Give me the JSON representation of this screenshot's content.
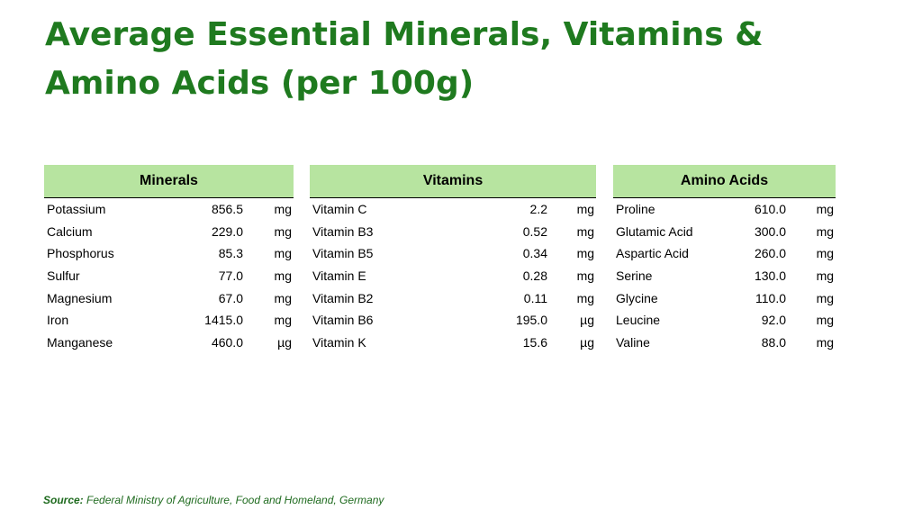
{
  "title": "Average Essential Minerals, Vitamins & Amino Acids (per 100g)",
  "source": {
    "label": "Source:",
    "text": "Federal Ministry of Agriculture, Food and Homeland, Germany"
  },
  "colors": {
    "title": "#1f7a1f",
    "header_bg": "#b7e4a0"
  },
  "tables": [
    {
      "header": "Minerals",
      "rows": [
        {
          "name": "Potassium",
          "value": "856.5",
          "unit": "mg"
        },
        {
          "name": "Calcium",
          "value": "229.0",
          "unit": "mg"
        },
        {
          "name": "Phosphorus",
          "value": "85.3",
          "unit": "mg"
        },
        {
          "name": "Sulfur",
          "value": "77.0",
          "unit": "mg"
        },
        {
          "name": "Magnesium",
          "value": "67.0",
          "unit": "mg"
        },
        {
          "name": "Iron",
          "value": "1415.0",
          "unit": "mg"
        },
        {
          "name": "Manganese",
          "value": "460.0",
          "unit": "µg"
        }
      ]
    },
    {
      "header": "Vitamins",
      "rows": [
        {
          "name": "Vitamin C",
          "value": "2.2",
          "unit": "mg"
        },
        {
          "name": "Vitamin B3",
          "value": "0.52",
          "unit": "mg"
        },
        {
          "name": "Vitamin B5",
          "value": "0.34",
          "unit": "mg"
        },
        {
          "name": "Vitamin E",
          "value": "0.28",
          "unit": "mg"
        },
        {
          "name": "Vitamin B2",
          "value": "0.11",
          "unit": "mg"
        },
        {
          "name": "Vitamin B6",
          "value": "195.0",
          "unit": "µg"
        },
        {
          "name": "Vitamin K",
          "value": "15.6",
          "unit": "µg"
        }
      ]
    },
    {
      "header": "Amino Acids",
      "rows": [
        {
          "name": "Proline",
          "value": "610.0",
          "unit": "mg"
        },
        {
          "name": "Glutamic Acid",
          "value": "300.0",
          "unit": "mg"
        },
        {
          "name": "Aspartic Acid",
          "value": "260.0",
          "unit": "mg"
        },
        {
          "name": "Serine",
          "value": "130.0",
          "unit": "mg"
        },
        {
          "name": "Glycine",
          "value": "110.0",
          "unit": "mg"
        },
        {
          "name": "Leucine",
          "value": "92.0",
          "unit": "mg"
        },
        {
          "name": "Valine",
          "value": "88.0",
          "unit": "mg"
        }
      ]
    }
  ]
}
